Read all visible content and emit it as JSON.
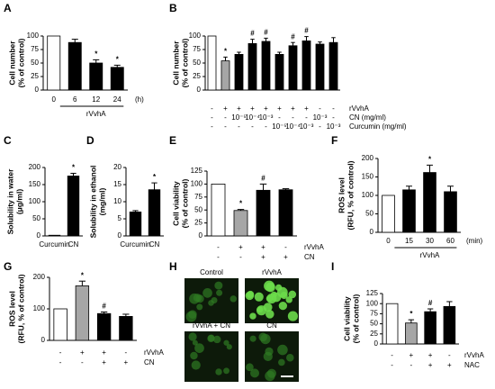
{
  "chart_data": [
    {
      "type": "bar",
      "label": "A",
      "ylabel": [
        "Cell number",
        "(% of control)"
      ],
      "categories": [
        "0",
        "6",
        "12",
        "24"
      ],
      "group": "rVvhA",
      "unit": "(h)",
      "values": [
        100,
        88,
        50,
        42
      ],
      "errors": [
        null,
        6,
        6,
        4
      ],
      "annotations": [
        null,
        null,
        "*",
        "*"
      ],
      "colors": [
        "#ffffff",
        "#000000",
        "#000000",
        "#000000"
      ],
      "ylim": [
        0,
        100
      ],
      "yticks": [
        0,
        25,
        50,
        75,
        100
      ]
    },
    {
      "type": "bar",
      "label": "B",
      "ylabel": [
        "Cell number",
        "(% of control)"
      ],
      "values": [
        100,
        54,
        66,
        86,
        90,
        66,
        82,
        91,
        85,
        88
      ],
      "errors": [
        null,
        7,
        4,
        8,
        6,
        4,
        6,
        8,
        4,
        9
      ],
      "annotations": [
        null,
        "*",
        null,
        "#",
        "#",
        null,
        "#",
        "#",
        null,
        null
      ],
      "colors": [
        "#ffffff",
        "#a6a6a6",
        "#000000",
        "#000000",
        "#000000",
        "#000000",
        "#000000",
        "#000000",
        "#000000",
        "#000000"
      ],
      "conditions": [
        {
          "name": "rVvhA",
          "values": [
            "-",
            "+",
            "+",
            "+",
            "+",
            "+",
            "+",
            "+",
            "-",
            "-"
          ]
        },
        {
          "name": "CN (mg/ml)",
          "values": [
            "-",
            "-",
            "10⁻⁵",
            "10⁻⁴",
            "10⁻³",
            "-",
            "-",
            "-",
            "10⁻³",
            "-"
          ]
        },
        {
          "name": "Curcumin (mg/ml)",
          "values": [
            "-",
            "-",
            "-",
            "-",
            "-",
            "10⁻⁵",
            "10⁻⁴",
            "10⁻³",
            "-",
            "10⁻³"
          ]
        }
      ],
      "ylim": [
        0,
        100
      ],
      "yticks": [
        0,
        25,
        50,
        75,
        100
      ]
    },
    {
      "type": "bar",
      "label": "C",
      "ylabel": [
        "Solubility in water",
        "(μg/ml)"
      ],
      "categories": [
        "Curcumin",
        "CN"
      ],
      "values": [
        2,
        175
      ],
      "errors": [
        null,
        8
      ],
      "annotations": [
        null,
        "*"
      ],
      "colors": [
        "#000000",
        "#000000"
      ],
      "ylim": [
        0,
        200
      ],
      "yticks": [
        0,
        50,
        100,
        150,
        200
      ]
    },
    {
      "type": "bar",
      "label": "D",
      "ylabel": [
        "Solubility in ethanol",
        "(mg/ml)"
      ],
      "categories": [
        "Curcumin",
        "CN"
      ],
      "values": [
        7,
        13.5
      ],
      "errors": [
        0.4,
        2
      ],
      "annotations": [
        null,
        "*"
      ],
      "colors": [
        "#000000",
        "#000000"
      ],
      "ylim": [
        0,
        20
      ],
      "yticks": [
        0,
        5,
        10,
        15,
        20
      ]
    },
    {
      "type": "bar",
      "label": "E",
      "ylabel": [
        "Cell viability",
        "(% of control)"
      ],
      "values": [
        100,
        49,
        88,
        89
      ],
      "errors": [
        null,
        2,
        12,
        2
      ],
      "annotations": [
        null,
        "*",
        "#",
        null
      ],
      "colors": [
        "#ffffff",
        "#a6a6a6",
        "#000000",
        "#000000"
      ],
      "conditions": [
        {
          "name": "rVvhA",
          "values": [
            "-",
            "+",
            "+",
            "-"
          ]
        },
        {
          "name": "CN",
          "values": [
            "-",
            "-",
            "+",
            "+"
          ]
        }
      ],
      "ylim": [
        0,
        125
      ],
      "yticks": [
        0,
        25,
        50,
        75,
        100,
        125
      ]
    },
    {
      "type": "bar",
      "label": "F",
      "ylabel": [
        "ROS level",
        "(RFU, % of control)"
      ],
      "categories": [
        "0",
        "15",
        "30",
        "60"
      ],
      "group": "rVvhA",
      "unit": "(min)",
      "values": [
        100,
        115,
        162,
        110
      ],
      "errors": [
        null,
        10,
        20,
        15
      ],
      "annotations": [
        null,
        null,
        "*",
        null
      ],
      "colors": [
        "#ffffff",
        "#000000",
        "#000000",
        "#000000"
      ],
      "ylim": [
        0,
        200
      ],
      "yticks": [
        0,
        50,
        100,
        150,
        200
      ]
    },
    {
      "type": "bar",
      "label": "G",
      "ylabel": [
        "ROS level",
        "(RFU, % of control)"
      ],
      "values": [
        100,
        173,
        85,
        76
      ],
      "errors": [
        null,
        15,
        5,
        7
      ],
      "annotations": [
        null,
        "*",
        "#",
        null
      ],
      "colors": [
        "#ffffff",
        "#a6a6a6",
        "#000000",
        "#000000"
      ],
      "conditions": [
        {
          "name": "rVvhA",
          "values": [
            "-",
            "+",
            "+",
            "-"
          ]
        },
        {
          "name": "CN",
          "values": [
            "-",
            "-",
            "+",
            "+"
          ]
        }
      ],
      "ylim": [
        0,
        200
      ],
      "yticks": [
        0,
        100,
        200
      ]
    },
    {
      "type": "image",
      "label": "H",
      "images": [
        "Control",
        "rVvhA",
        "rVvhA + CN",
        "CN"
      ]
    },
    {
      "type": "bar",
      "label": "I",
      "ylabel": [
        "Cell viability",
        "(% of control)"
      ],
      "values": [
        100,
        52,
        80,
        93
      ],
      "errors": [
        null,
        8,
        7,
        12
      ],
      "annotations": [
        null,
        "*",
        "#",
        null
      ],
      "colors": [
        "#ffffff",
        "#a6a6a6",
        "#000000",
        "#000000"
      ],
      "conditions": [
        {
          "name": "rVvhA",
          "values": [
            "-",
            "+",
            "+",
            "-"
          ]
        },
        {
          "name": "NAC",
          "values": [
            "-",
            "-",
            "+",
            "+"
          ]
        }
      ],
      "ylim": [
        0,
        125
      ],
      "yticks": [
        0,
        25,
        50,
        75,
        100,
        125
      ]
    }
  ]
}
